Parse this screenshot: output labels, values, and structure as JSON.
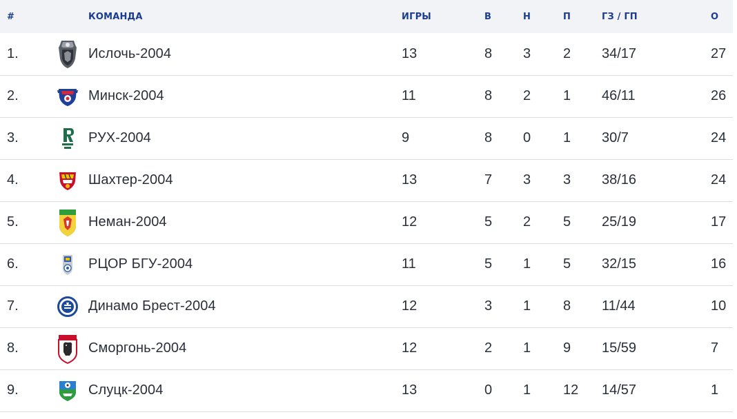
{
  "table": {
    "headers": {
      "position": "#",
      "team": "КОМАНДА",
      "games": "ИГРЫ",
      "wins": "В",
      "draws": "Н",
      "losses": "П",
      "goals": "ГЗ / ГП",
      "points": "О"
    },
    "rows": [
      {
        "position": "1.",
        "logo": "isloch-crest-icon",
        "team": "Ислочь-2004",
        "games": "13",
        "wins": "8",
        "draws": "3",
        "losses": "2",
        "goals": "34/17",
        "points": "27"
      },
      {
        "position": "2.",
        "logo": "minsk-crest-icon",
        "team": "Минск-2004",
        "games": "11",
        "wins": "8",
        "draws": "2",
        "losses": "1",
        "goals": "46/11",
        "points": "26"
      },
      {
        "position": "3.",
        "logo": "rukh-crest-icon",
        "team": "РУХ-2004",
        "games": "9",
        "wins": "8",
        "draws": "0",
        "losses": "1",
        "goals": "30/7",
        "points": "24"
      },
      {
        "position": "4.",
        "logo": "shakhter-crest-icon",
        "team": "Шахтер-2004",
        "games": "13",
        "wins": "7",
        "draws": "3",
        "losses": "3",
        "goals": "38/16",
        "points": "24"
      },
      {
        "position": "5.",
        "logo": "neman-crest-icon",
        "team": "Неман-2004",
        "games": "12",
        "wins": "5",
        "draws": "2",
        "losses": "5",
        "goals": "25/19",
        "points": "17"
      },
      {
        "position": "6.",
        "logo": "rcor-bgu-crest-icon",
        "team": "РЦОР БГУ-2004",
        "games": "11",
        "wins": "5",
        "draws": "1",
        "losses": "5",
        "goals": "32/15",
        "points": "16"
      },
      {
        "position": "7.",
        "logo": "dinamo-brest-crest-icon",
        "team": "Динамо Брест-2004",
        "games": "12",
        "wins": "3",
        "draws": "1",
        "losses": "8",
        "goals": "11/44",
        "points": "10"
      },
      {
        "position": "8.",
        "logo": "smorgon-crest-icon",
        "team": "Сморгонь-2004",
        "games": "12",
        "wins": "2",
        "draws": "1",
        "losses": "9",
        "goals": "15/59",
        "points": "7"
      },
      {
        "position": "9.",
        "logo": "slutsk-crest-icon",
        "team": "Слуцк-2004",
        "games": "13",
        "wins": "0",
        "draws": "1",
        "losses": "12",
        "goals": "14/57",
        "points": "1"
      }
    ]
  },
  "colors": {
    "header_text": "#1b3c8f",
    "header_bg": "#f1f3f7",
    "row_border": "#d9dde4",
    "body_text": "#2a2f3a"
  }
}
